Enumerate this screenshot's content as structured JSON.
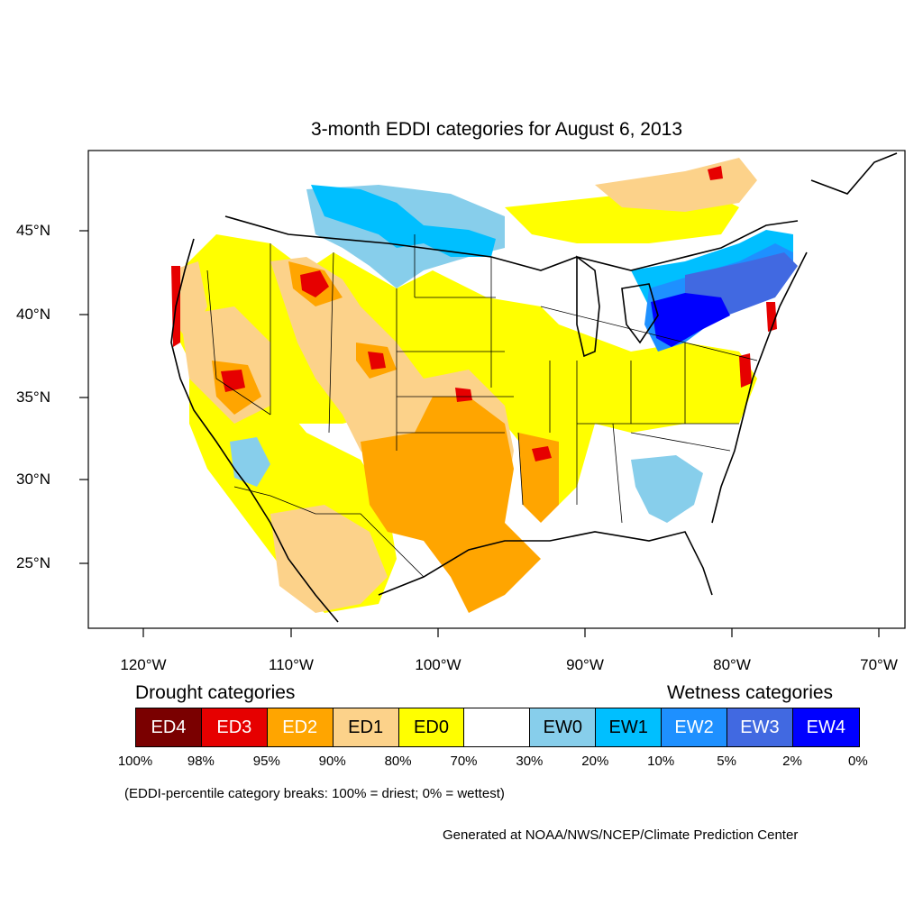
{
  "title": "3-month EDDI categories for August 6, 2013",
  "lat_labels": [
    "45°N",
    "40°N",
    "35°N",
    "30°N",
    "25°N"
  ],
  "lon_labels": [
    "120°W",
    "110°W",
    "100°W",
    "90°W",
    "80°W",
    "70°W"
  ],
  "drought_heading": "Drought categories",
  "wetness_heading": "Wetness categories",
  "categories": [
    {
      "label": "ED4",
      "color": "#7a0000",
      "text_color": "#ffffff"
    },
    {
      "label": "ED3",
      "color": "#e60000",
      "text_color": "#ffffff"
    },
    {
      "label": "ED2",
      "color": "#ffa500",
      "text_color": "#ffffff"
    },
    {
      "label": "ED1",
      "color": "#fcd28a",
      "text_color": "#000000"
    },
    {
      "label": "ED0",
      "color": "#ffff00",
      "text_color": "#000000"
    },
    {
      "label": "",
      "color": "#ffffff",
      "text_color": "#000000"
    },
    {
      "label": "EW0",
      "color": "#87ceeb",
      "text_color": "#000000"
    },
    {
      "label": "EW1",
      "color": "#00bfff",
      "text_color": "#000000"
    },
    {
      "label": "EW2",
      "color": "#1e90ff",
      "text_color": "#ffffff"
    },
    {
      "label": "EW3",
      "color": "#4169e1",
      "text_color": "#ffffff"
    },
    {
      "label": "EW4",
      "color": "#0000ff",
      "text_color": "#ffffff"
    }
  ],
  "breaks": [
    "100%",
    "98%",
    "95%",
    "90%",
    "80%",
    "70%",
    "30%",
    "20%",
    "10%",
    "5%",
    "2%",
    "0%"
  ],
  "note": "(EDDI-percentile category breaks: 100% = driest; 0% = wettest)",
  "credit": "Generated at NOAA/NWS/NCEP/Climate Prediction Center"
}
